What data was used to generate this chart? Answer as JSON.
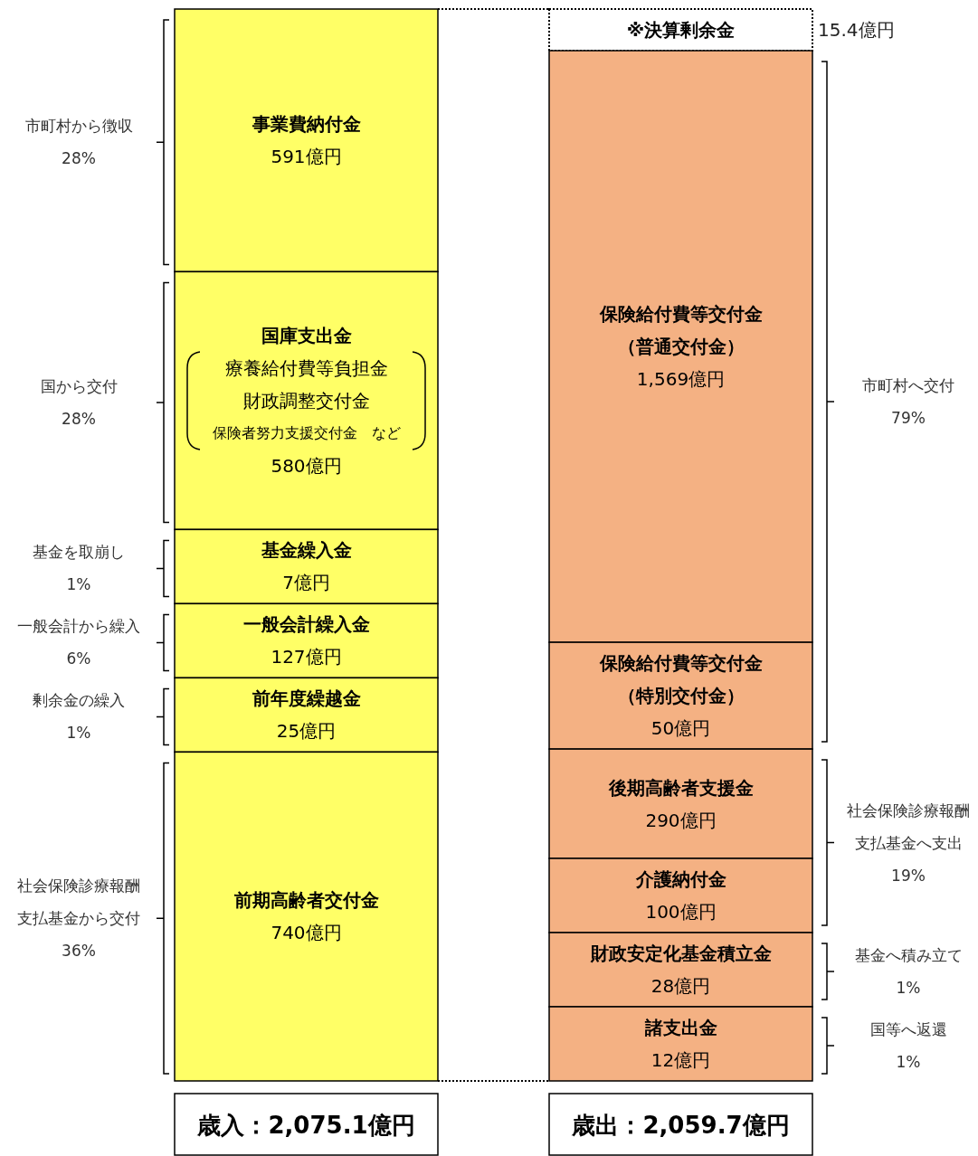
{
  "chart_data": {
    "type": "other",
    "categories": [
      "歳入：2,075.1億円",
      "歳出：2,059.7億円"
    ],
    "series": [
      {
        "name": "事業費納付金",
        "color": "#ffff66",
        "values": [
          591,
          null
        ],
        "value_labels": [
          "591億円",
          null
        ]
      },
      {
        "name": "国庫支出金",
        "color": "#ffff66",
        "values": [
          580,
          null
        ],
        "value_labels": [
          "580億円",
          null
        ]
      },
      {
        "name": "基金繰入金",
        "color": "#ffff66",
        "values": [
          7,
          null
        ],
        "value_labels": [
          "7億円",
          null
        ]
      },
      {
        "name": "一般会計繰入金",
        "color": "#ffff66",
        "values": [
          127,
          null
        ],
        "value_labels": [
          "127億円",
          null
        ]
      },
      {
        "name": "前年度繰越金",
        "color": "#ffff66",
        "values": [
          25,
          null
        ],
        "value_labels": [
          "25億円",
          null
        ]
      },
      {
        "name": "前期高齢者交付金",
        "color": "#ffff66",
        "values": [
          740,
          null
        ],
        "value_labels": [
          "740億円",
          null
        ]
      },
      {
        "name": "※決算剰余金",
        "values": [
          null,
          15.4
        ],
        "value_labels": [
          null,
          "15.4億円"
        ],
        "line_style": "dotted"
      },
      {
        "name": "保険給付費等交付金（普通交付金）",
        "color": "#f4b183",
        "values": [
          null,
          1569
        ],
        "value_labels": [
          null,
          "1,569億円"
        ]
      },
      {
        "name": "保険給付費等交付金（特別交付金）",
        "color": "#f4b183",
        "values": [
          null,
          50
        ],
        "value_labels": [
          null,
          "50億円"
        ]
      },
      {
        "name": "後期高齢者支援金",
        "color": "#f4b183",
        "values": [
          null,
          290
        ],
        "value_labels": [
          null,
          "290億円"
        ]
      },
      {
        "name": "介護納付金",
        "color": "#f4b183",
        "values": [
          null,
          100
        ],
        "value_labels": [
          null,
          "100億円"
        ]
      },
      {
        "name": "財政安定化基金積立金",
        "color": "#f4b183",
        "values": [
          null,
          28
        ],
        "value_labels": [
          null,
          "28億円"
        ]
      },
      {
        "name": "諸支出金",
        "color": "#f4b183",
        "values": [
          null,
          12
        ],
        "value_labels": [
          null,
          "12億円"
        ]
      }
    ],
    "annotations": [
      {
        "text": "市町村から徴収\n28%",
        "x": "事業費納付金"
      },
      {
        "text": "国から交付\n28%",
        "x": "国庫支出金"
      },
      {
        "text": "療養給付費等負担金",
        "x": "国庫支出金"
      },
      {
        "text": "財政調整交付金",
        "x": "国庫支出金"
      },
      {
        "text": "保険者努力支援交付金　など",
        "x": "国庫支出金"
      },
      {
        "text": "基金を取崩し\n1%",
        "x": "基金繰入金"
      },
      {
        "text": "一般会計から繰入\n6%",
        "x": "一般会計繰入金"
      },
      {
        "text": "剰余金の繰入\n1%",
        "x": "前年度繰越金"
      },
      {
        "text": "社会保険診療報酬支払基金から交付\n36%",
        "x": "前期高齢者交付金"
      },
      {
        "text": "市町村へ交付\n79%",
        "x": "保険給付費等交付金（普通交付金）"
      },
      {
        "text": "社会保険診療報酬支払基金へ支出\n19%",
        "x": "後期高齢者支援金"
      },
      {
        "text": "基金へ積み立て\n1%",
        "x": "財政安定化基金積立金"
      },
      {
        "text": "国等へ返還\n1%",
        "x": "諸支出金"
      }
    ]
  }
}
